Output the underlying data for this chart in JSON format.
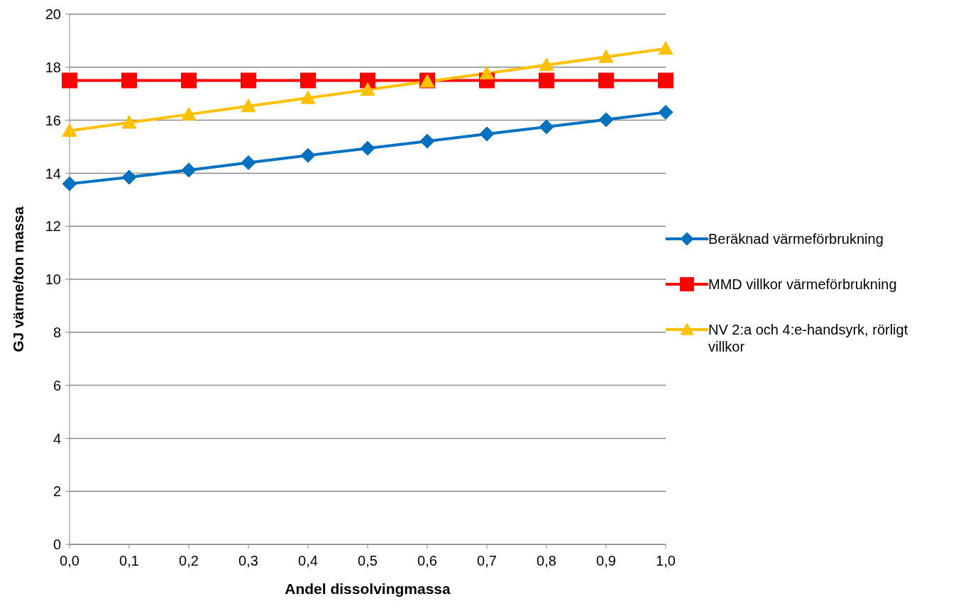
{
  "chart_data": {
    "type": "line",
    "xlabel": "Andel dissolvingmassa",
    "ylabel": "GJ värme/ton massa",
    "categories": [
      "0,0",
      "0,1",
      "0,2",
      "0,3",
      "0,4",
      "0,5",
      "0,6",
      "0,7",
      "0,8",
      "0,9",
      "1,0"
    ],
    "ylim": [
      0,
      20
    ],
    "yticks": [
      0,
      2,
      4,
      6,
      8,
      10,
      12,
      14,
      16,
      18,
      20
    ],
    "grid": "y",
    "legend": "right",
    "line_style": "solid",
    "series": [
      {
        "name": "Beräknad värmeförbrukning",
        "color": "#0070c0",
        "marker": "diamond",
        "values": [
          13.6,
          13.85,
          14.12,
          14.4,
          14.67,
          14.94,
          15.21,
          15.48,
          15.75,
          16.02,
          16.3
        ]
      },
      {
        "name": "MMD villkor värmeförbrukning",
        "color": "#ff0000",
        "marker": "square",
        "values": [
          17.5,
          17.5,
          17.5,
          17.5,
          17.5,
          17.5,
          17.5,
          17.5,
          17.5,
          17.5,
          17.5
        ]
      },
      {
        "name": "NV 2:a och 4:e-handsyrk, rörligt villkor",
        "color": "#ffc000",
        "marker": "triangle",
        "values": [
          15.6,
          15.91,
          16.22,
          16.53,
          16.84,
          17.15,
          17.46,
          17.77,
          18.08,
          18.39,
          18.7
        ]
      }
    ]
  }
}
